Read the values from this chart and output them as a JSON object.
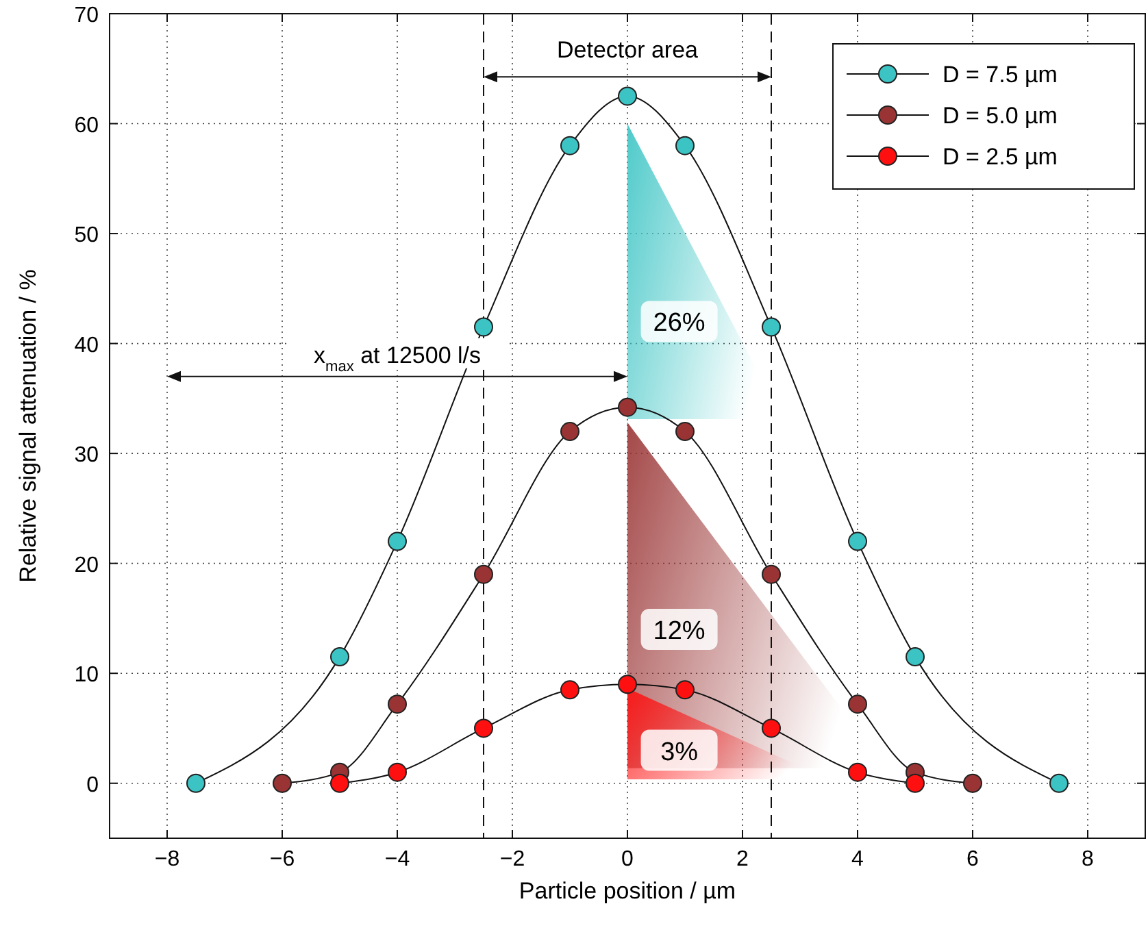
{
  "chart_data": {
    "type": "line",
    "xlabel": "Particle position / µm",
    "ylabel": "Relative signal attenuation / %",
    "xlim": [
      -9,
      9
    ],
    "ylim": [
      -5,
      70
    ],
    "xticks": [
      {
        "value": -8,
        "label": "−8"
      },
      {
        "value": -6,
        "label": "−6"
      },
      {
        "value": -4,
        "label": "−4"
      },
      {
        "value": -2,
        "label": "−2"
      },
      0,
      2,
      4,
      6,
      8
    ],
    "yticks": [
      0,
      10,
      20,
      30,
      40,
      50,
      60,
      70
    ],
    "grid": true,
    "legend": "top right",
    "marker": "circle",
    "series": [
      {
        "name": "D = 7.5 µm",
        "color": "#3cc4c4",
        "x": [
          -7.5,
          -5,
          -4,
          -2.5,
          -1,
          0,
          1,
          2.5,
          4,
          5,
          7.5
        ],
        "values": [
          0,
          11.5,
          22,
          41.5,
          58,
          62.5,
          58,
          41.5,
          22,
          11.5,
          0
        ]
      },
      {
        "name": "D = 5.0 µm",
        "color": "#9a3434",
        "x": [
          -6,
          -5,
          -4,
          -2.5,
          -1,
          0,
          1,
          2.5,
          4,
          5,
          6
        ],
        "values": [
          0,
          1,
          7.2,
          19,
          32,
          34.2,
          32,
          19,
          7.2,
          1,
          0
        ]
      },
      {
        "name": "D = 2.5 µm",
        "color": "#ff1010",
        "x": [
          -5,
          -4,
          -2.5,
          -1,
          0,
          1,
          2.5,
          4,
          5
        ],
        "values": [
          0,
          1,
          5,
          8.5,
          9,
          8.5,
          5,
          1,
          0
        ]
      }
    ],
    "ref_lines": [
      {
        "axis": "x",
        "value": -2.5,
        "line_style": "dashed"
      },
      {
        "axis": "x",
        "value": 2.5,
        "line_style": "dashed"
      }
    ],
    "annotations": [
      "Detector area",
      "x$_{max}$ at 12500 l/s",
      "26%",
      "12%",
      "3%"
    ]
  }
}
